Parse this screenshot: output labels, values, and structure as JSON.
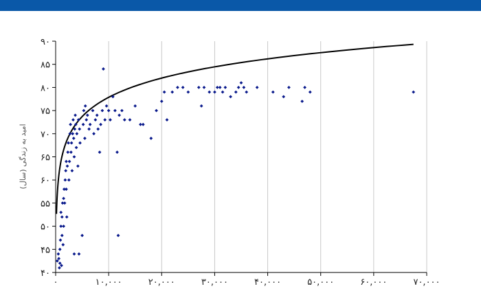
{
  "header": {
    "bar_color": "#0a58a8"
  },
  "chart_data": {
    "type": "scatter",
    "title": "",
    "ylabel": "امید به زندگی (سال)",
    "xlabel": "",
    "xlim": [
      0,
      70000
    ],
    "ylim": [
      40,
      90
    ],
    "x_ticks": [
      0,
      10000,
      20000,
      30000,
      40000,
      50000,
      60000,
      70000
    ],
    "x_tick_labels": [
      "۰",
      "۱۰,۰۰۰",
      "۲۰,۰۰۰",
      "۳۰,۰۰۰",
      "۴۰,۰۰۰",
      "۵۰,۰۰۰",
      "۶۰,۰۰۰",
      "۷۰,۰۰۰"
    ],
    "y_ticks": [
      40,
      45,
      50,
      55,
      60,
      65,
      70,
      75,
      80,
      85,
      90
    ],
    "y_tick_labels": [
      "۴۰",
      "۴۵",
      "۵۰",
      "۵۵",
      "۶۰",
      "۶۵",
      "۷۰",
      "۷۵",
      "۸۰",
      "۸۵",
      "۹۰"
    ],
    "grid": "vertical",
    "point_color": "#0a1a8c",
    "curve_color": "#000000",
    "series": [
      {
        "marker": "diamond",
        "points": [
          [
            300,
            42.5
          ],
          [
            500,
            44
          ],
          [
            600,
            43
          ],
          [
            700,
            41
          ],
          [
            800,
            42
          ],
          [
            800,
            45
          ],
          [
            900,
            47
          ],
          [
            1000,
            50
          ],
          [
            1000,
            53
          ],
          [
            1100,
            41.5
          ],
          [
            1200,
            48
          ],
          [
            1200,
            52
          ],
          [
            1300,
            55
          ],
          [
            1400,
            46
          ],
          [
            1500,
            50
          ],
          [
            1500,
            56
          ],
          [
            1600,
            58
          ],
          [
            1700,
            55
          ],
          [
            1800,
            60
          ],
          [
            1900,
            62
          ],
          [
            2000,
            64
          ],
          [
            2000,
            58
          ],
          [
            2100,
            52
          ],
          [
            2200,
            63
          ],
          [
            2300,
            66
          ],
          [
            2400,
            68
          ],
          [
            2500,
            60
          ],
          [
            2600,
            64
          ],
          [
            2700,
            70
          ],
          [
            2800,
            72
          ],
          [
            2900,
            66
          ],
          [
            3000,
            68
          ],
          [
            3100,
            62
          ],
          [
            3200,
            70
          ],
          [
            3300,
            73
          ],
          [
            3400,
            69
          ],
          [
            3500,
            65
          ],
          [
            3500,
            44
          ],
          [
            3600,
            71
          ],
          [
            3700,
            74
          ],
          [
            3800,
            72
          ],
          [
            3900,
            67
          ],
          [
            4000,
            70
          ],
          [
            4200,
            63
          ],
          [
            4300,
            73
          ],
          [
            4400,
            44
          ],
          [
            4500,
            71
          ],
          [
            4600,
            68
          ],
          [
            5000,
            48
          ],
          [
            5200,
            72
          ],
          [
            5300,
            75
          ],
          [
            5500,
            69
          ],
          [
            5600,
            76
          ],
          [
            5800,
            73
          ],
          [
            6000,
            74
          ],
          [
            6300,
            71
          ],
          [
            6500,
            72
          ],
          [
            7000,
            75
          ],
          [
            7200,
            70
          ],
          [
            7500,
            73
          ],
          [
            7800,
            74
          ],
          [
            8000,
            71
          ],
          [
            8300,
            66
          ],
          [
            8500,
            72
          ],
          [
            8800,
            75
          ],
          [
            9000,
            84
          ],
          [
            9300,
            73
          ],
          [
            9600,
            76
          ],
          [
            10000,
            75
          ],
          [
            10300,
            73
          ],
          [
            10800,
            78
          ],
          [
            11200,
            75
          ],
          [
            11600,
            66
          ],
          [
            11800,
            48
          ],
          [
            12000,
            74
          ],
          [
            12500,
            75
          ],
          [
            13000,
            73
          ],
          [
            14000,
            73
          ],
          [
            15000,
            76
          ],
          [
            16000,
            72
          ],
          [
            16500,
            72
          ],
          [
            18000,
            69
          ],
          [
            19000,
            75
          ],
          [
            20000,
            77
          ],
          [
            20500,
            79
          ],
          [
            21000,
            73
          ],
          [
            22000,
            79
          ],
          [
            23000,
            80
          ],
          [
            24000,
            80
          ],
          [
            25000,
            79
          ],
          [
            27000,
            80
          ],
          [
            27500,
            76
          ],
          [
            28000,
            80
          ],
          [
            29000,
            79
          ],
          [
            30000,
            79
          ],
          [
            30500,
            80
          ],
          [
            31000,
            80
          ],
          [
            31500,
            79
          ],
          [
            32000,
            80
          ],
          [
            33000,
            78
          ],
          [
            34000,
            79
          ],
          [
            34500,
            80
          ],
          [
            35000,
            81
          ],
          [
            35500,
            80
          ],
          [
            36000,
            79
          ],
          [
            38000,
            80
          ],
          [
            41000,
            79
          ],
          [
            43000,
            78
          ],
          [
            44000,
            80
          ],
          [
            46500,
            77
          ],
          [
            47000,
            80
          ],
          [
            48000,
            79
          ],
          [
            67500,
            79
          ]
        ]
      }
    ],
    "trend": {
      "type": "logarithmic",
      "a": 6.0,
      "b": 22.6,
      "x_from": 150,
      "x_to": 67500
    }
  }
}
